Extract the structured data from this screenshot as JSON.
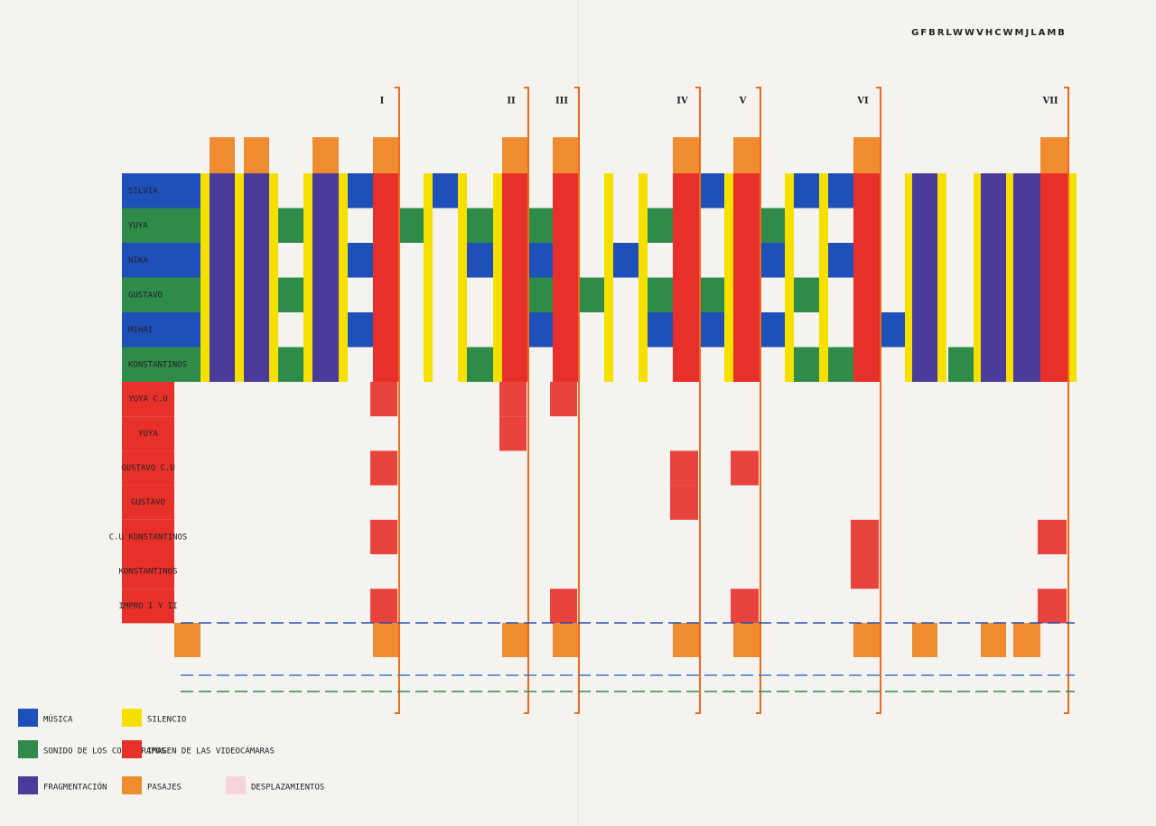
{
  "header": {
    "code": "GFBRLWWVHCWMJLAMB"
  },
  "sections": [
    "I",
    "II",
    "III",
    "IV",
    "V",
    "VI",
    "VII"
  ],
  "rows": [
    "SILVIA",
    "YUYA",
    "NIKA",
    "GUSTAVO",
    "MIHAI",
    "KONSTANTINOS"
  ],
  "sub_rows": [
    "YUYA C.U",
    "YUYA",
    "GUSTAVO C.U",
    "GUSTAVO",
    "C.U KONSTANTINOS",
    "KONSTANTINOS",
    "IMPRO I Y II"
  ],
  "legend": [
    "MÚSICA",
    "SILENCIO",
    "SONIDO DE LOS COREÓGRAFOS",
    "IMAGEN DE LAS VIDEOCÁMARAS",
    "FRAGMENTACIÓN",
    "PASAJES",
    "DESPLAZAMIENTOS"
  ]
}
